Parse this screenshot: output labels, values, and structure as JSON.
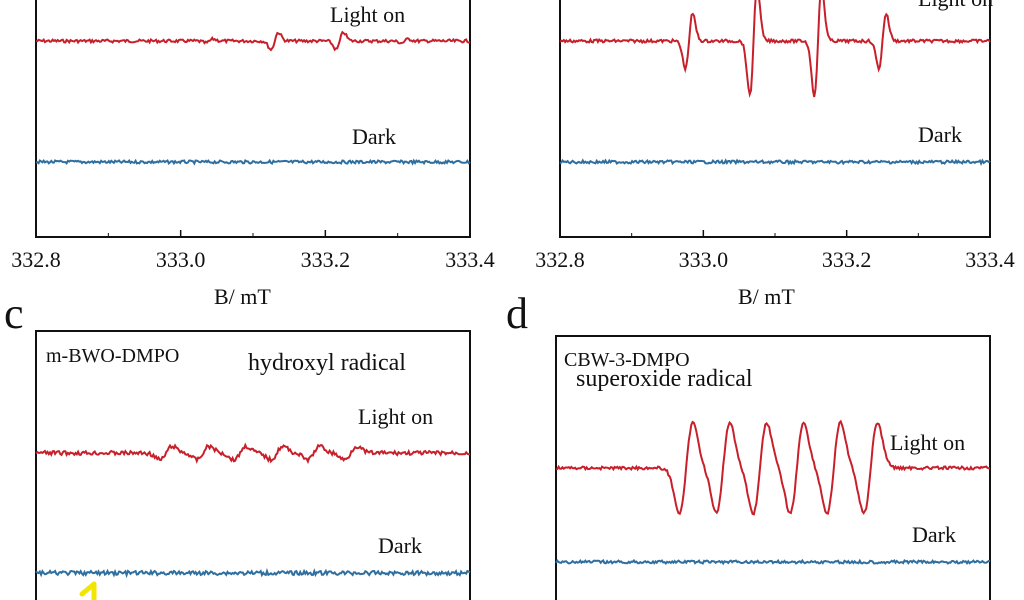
{
  "figure": {
    "panels": [
      {
        "letter": "",
        "xlabel": "B/ mT",
        "sample_label": "",
        "radical_label": "",
        "ticks": [
          "332.8",
          "333.0",
          "333.2",
          "333.4"
        ]
      },
      {
        "letter": "",
        "xlabel": "B/ mT",
        "sample_label": "",
        "radical_label": "",
        "ticks": [
          "332.8",
          "333.0",
          "333.2",
          "333.4"
        ]
      },
      {
        "letter": "c",
        "xlabel": "",
        "sample_label": "m-BWO-DMPO",
        "radical_label": "hydroxyl radical",
        "ticks": []
      },
      {
        "letter": "d",
        "xlabel": "",
        "sample_label": "CBW-3-DMPO",
        "radical_label": "superoxide radical",
        "ticks": []
      }
    ]
  },
  "colors": {
    "light_on": "#c8202b",
    "dark": "#2f6f9f",
    "axis": "#111111",
    "annotation": "#f2e600"
  },
  "chart_data": [
    {
      "type": "line",
      "xlabel": "B/ mT",
      "xlim": [
        332.8,
        333.4
      ],
      "x_ticks": [
        "332.8",
        "333.0",
        "333.2",
        "333.4"
      ],
      "series": [
        {
          "name": "Light on",
          "pattern": "quartet",
          "rel_amplitudes": [
            0.08,
            0.35,
            0.35,
            0.08
          ],
          "line_centers": [
            333.04,
            333.13,
            333.22,
            333.31
          ]
        },
        {
          "name": "Dark",
          "pattern": "flat"
        }
      ]
    },
    {
      "type": "line",
      "xlabel": "B/ mT",
      "xlim": [
        332.8,
        333.4
      ],
      "x_ticks": [
        "332.8",
        "333.0",
        "333.2",
        "333.4"
      ],
      "series": [
        {
          "name": "Light on",
          "pattern": "quartet",
          "rel_amplitudes": [
            0.5,
            1.0,
            1.0,
            0.5
          ],
          "line_centers": [
            332.98,
            333.07,
            333.16,
            333.25
          ]
        },
        {
          "name": "Dark",
          "pattern": "flat"
        }
      ]
    },
    {
      "type": "line",
      "title": "hydroxyl radical",
      "subtitle": "m-BWO-DMPO",
      "series": [
        {
          "name": "Light on",
          "pattern": "sextet",
          "rel_amplitudes": [
            0.35,
            0.35,
            0.35,
            0.35,
            0.35,
            0.35
          ]
        },
        {
          "name": "Dark",
          "pattern": "flat"
        }
      ]
    },
    {
      "type": "line",
      "title": "superoxide radical",
      "subtitle": "CBW-3-DMPO",
      "series": [
        {
          "name": "Light on",
          "pattern": "sextet",
          "rel_amplitudes": [
            1.0,
            1.0,
            1.0,
            1.0,
            1.0,
            1.0
          ]
        },
        {
          "name": "Dark",
          "pattern": "flat"
        }
      ]
    }
  ]
}
